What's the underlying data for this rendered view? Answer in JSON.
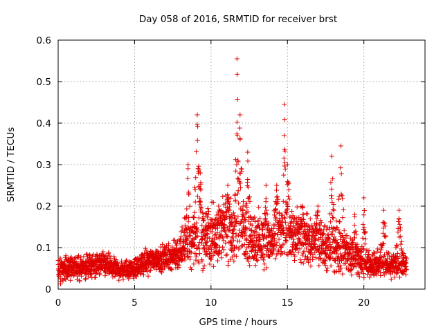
{
  "chart_data": {
    "type": "scatter",
    "title": "Day 058 of 2016, SRMTID for receiver brst",
    "xlabel": "GPS time / hours",
    "ylabel": "SRMTID / TECUs",
    "xlim": [
      0,
      24
    ],
    "ylim": [
      0,
      0.6
    ],
    "xticks": [
      0,
      5,
      10,
      15,
      20
    ],
    "xtick_labels": [
      "0",
      "5",
      "10",
      "15",
      "20"
    ],
    "yticks": [
      0,
      0.1,
      0.2,
      0.3,
      0.4,
      0.5,
      0.6
    ],
    "ytick_labels": [
      "0",
      "0.1",
      "0.2",
      "0.3",
      "0.4",
      "0.5",
      "0.6"
    ],
    "grid": true,
    "marker": "+",
    "color": "#e00000",
    "x_range_of_data": [
      0,
      22.8
    ],
    "sampling_interval_hours": 0.008,
    "envelope": {
      "description": "approximate mean level (y) and spread versus time, estimated from gridlines",
      "x": [
        0,
        1,
        2,
        3,
        4,
        5,
        6,
        7,
        7.8,
        8.2,
        9,
        10,
        11,
        12,
        13,
        14,
        15,
        16,
        17,
        18,
        19,
        20,
        21,
        22,
        22.8
      ],
      "mean": [
        0.05,
        0.05,
        0.055,
        0.06,
        0.045,
        0.05,
        0.07,
        0.075,
        0.085,
        0.11,
        0.12,
        0.13,
        0.14,
        0.14,
        0.12,
        0.11,
        0.13,
        0.12,
        0.11,
        0.1,
        0.09,
        0.06,
        0.06,
        0.06,
        0.06
      ],
      "spread": [
        0.02,
        0.02,
        0.02,
        0.02,
        0.015,
        0.015,
        0.02,
        0.02,
        0.025,
        0.04,
        0.05,
        0.05,
        0.05,
        0.05,
        0.045,
        0.04,
        0.045,
        0.045,
        0.04,
        0.04,
        0.035,
        0.02,
        0.02,
        0.02,
        0.02
      ]
    },
    "peaks": [
      {
        "x": 8.5,
        "y": 0.3,
        "width": 0.25
      },
      {
        "x": 9.1,
        "y": 0.42,
        "width": 0.3
      },
      {
        "x": 9.3,
        "y": 0.28,
        "width": 0.2
      },
      {
        "x": 10.5,
        "y": 0.2,
        "width": 0.4
      },
      {
        "x": 11.1,
        "y": 0.25,
        "width": 0.3
      },
      {
        "x": 11.7,
        "y": 0.555,
        "width": 0.15
      },
      {
        "x": 11.9,
        "y": 0.42,
        "width": 0.3
      },
      {
        "x": 12.4,
        "y": 0.33,
        "width": 0.25
      },
      {
        "x": 13.6,
        "y": 0.25,
        "width": 0.3
      },
      {
        "x": 14.3,
        "y": 0.25,
        "width": 0.35
      },
      {
        "x": 14.8,
        "y": 0.445,
        "width": 0.15
      },
      {
        "x": 15.0,
        "y": 0.3,
        "width": 0.3
      },
      {
        "x": 16.0,
        "y": 0.2,
        "width": 0.4
      },
      {
        "x": 17.0,
        "y": 0.2,
        "width": 0.35
      },
      {
        "x": 17.9,
        "y": 0.32,
        "width": 0.25
      },
      {
        "x": 18.5,
        "y": 0.345,
        "width": 0.3
      },
      {
        "x": 19.4,
        "y": 0.18,
        "width": 0.3
      },
      {
        "x": 20.0,
        "y": 0.22,
        "width": 0.2
      },
      {
        "x": 21.3,
        "y": 0.19,
        "width": 0.3
      },
      {
        "x": 22.3,
        "y": 0.19,
        "width": 0.3
      }
    ]
  }
}
